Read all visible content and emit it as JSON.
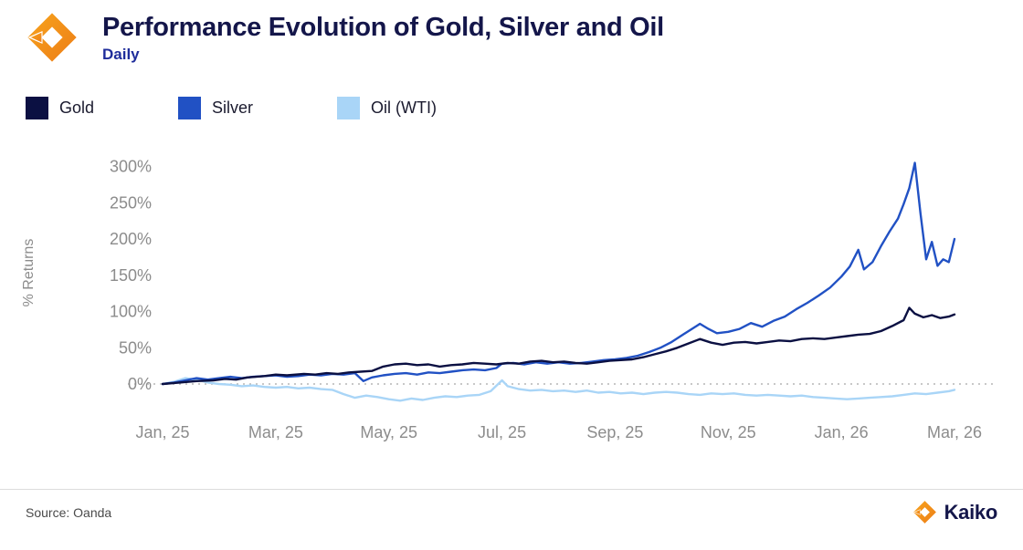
{
  "header": {
    "title": "Performance Evolution of Gold, Silver and Oil",
    "subtitle": "Daily"
  },
  "footer": {
    "source": "Source: Oanda",
    "brand": "Kaiko"
  },
  "colors": {
    "title_navy": "#14164a",
    "subtitle_blue": "#1f2d9b",
    "brand_orange": "#f0891e",
    "axis_text": "#8c8c8c",
    "zero_line": "#b5b5b5"
  },
  "chart_data": {
    "type": "line",
    "title": "Performance Evolution of Gold, Silver and Oil",
    "subtitle": "Daily",
    "xlabel": "",
    "ylabel": "% Returns",
    "x_unit": "months since Jan 2025",
    "ylim": [
      -40,
      320
    ],
    "yticks": [
      0,
      50,
      100,
      150,
      200,
      250,
      300
    ],
    "ytick_suffix": "%",
    "grid": "dashed zero line only",
    "legend_position": "top-left",
    "xticks": [
      {
        "x": 0,
        "label": "Jan, 25"
      },
      {
        "x": 2,
        "label": "Mar, 25"
      },
      {
        "x": 4,
        "label": "May, 25"
      },
      {
        "x": 6,
        "label": "Jul, 25"
      },
      {
        "x": 8,
        "label": "Sep, 25"
      },
      {
        "x": 10,
        "label": "Nov, 25"
      },
      {
        "x": 12,
        "label": "Jan, 26"
      },
      {
        "x": 14,
        "label": "Mar, 26"
      }
    ],
    "series": [
      {
        "name": "Gold",
        "color": "#0b1042",
        "points": [
          [
            0,
            0
          ],
          [
            0.3,
            2
          ],
          [
            0.6,
            4
          ],
          [
            0.9,
            5
          ],
          [
            1.1,
            7
          ],
          [
            1.3,
            6
          ],
          [
            1.5,
            9
          ],
          [
            1.8,
            11
          ],
          [
            2.0,
            13
          ],
          [
            2.2,
            12
          ],
          [
            2.5,
            14
          ],
          [
            2.7,
            13
          ],
          [
            2.9,
            15
          ],
          [
            3.1,
            14
          ],
          [
            3.3,
            16
          ],
          [
            3.5,
            17
          ],
          [
            3.7,
            18
          ],
          [
            3.9,
            24
          ],
          [
            4.1,
            27
          ],
          [
            4.3,
            28
          ],
          [
            4.5,
            26
          ],
          [
            4.7,
            27
          ],
          [
            4.9,
            24
          ],
          [
            5.1,
            26
          ],
          [
            5.3,
            27
          ],
          [
            5.5,
            29
          ],
          [
            5.7,
            28
          ],
          [
            5.9,
            27
          ],
          [
            6.1,
            29
          ],
          [
            6.3,
            28
          ],
          [
            6.5,
            31
          ],
          [
            6.7,
            32
          ],
          [
            6.9,
            30
          ],
          [
            7.1,
            31
          ],
          [
            7.3,
            29
          ],
          [
            7.5,
            28
          ],
          [
            7.7,
            30
          ],
          [
            7.9,
            32
          ],
          [
            8.1,
            33
          ],
          [
            8.3,
            34
          ],
          [
            8.5,
            37
          ],
          [
            8.7,
            41
          ],
          [
            8.9,
            45
          ],
          [
            9.1,
            50
          ],
          [
            9.3,
            56
          ],
          [
            9.5,
            62
          ],
          [
            9.7,
            57
          ],
          [
            9.9,
            54
          ],
          [
            10.1,
            57
          ],
          [
            10.3,
            58
          ],
          [
            10.5,
            56
          ],
          [
            10.7,
            58
          ],
          [
            10.9,
            60
          ],
          [
            11.1,
            59
          ],
          [
            11.3,
            62
          ],
          [
            11.5,
            63
          ],
          [
            11.7,
            62
          ],
          [
            11.9,
            64
          ],
          [
            12.1,
            66
          ],
          [
            12.3,
            68
          ],
          [
            12.5,
            69
          ],
          [
            12.7,
            73
          ],
          [
            12.9,
            80
          ],
          [
            13.1,
            88
          ],
          [
            13.2,
            105
          ],
          [
            13.3,
            97
          ],
          [
            13.45,
            92
          ],
          [
            13.6,
            95
          ],
          [
            13.75,
            91
          ],
          [
            13.9,
            93
          ],
          [
            14.0,
            96
          ]
        ]
      },
      {
        "name": "Silver",
        "color": "#2151c4",
        "points": [
          [
            0,
            0
          ],
          [
            0.2,
            2
          ],
          [
            0.4,
            5
          ],
          [
            0.6,
            8
          ],
          [
            0.8,
            6
          ],
          [
            1.0,
            8
          ],
          [
            1.2,
            10
          ],
          [
            1.4,
            8
          ],
          [
            1.6,
            10
          ],
          [
            1.8,
            11
          ],
          [
            2.0,
            12
          ],
          [
            2.2,
            10
          ],
          [
            2.4,
            11
          ],
          [
            2.6,
            13
          ],
          [
            2.8,
            12
          ],
          [
            3.0,
            14
          ],
          [
            3.2,
            13
          ],
          [
            3.4,
            15
          ],
          [
            3.55,
            4
          ],
          [
            3.7,
            9
          ],
          [
            3.9,
            12
          ],
          [
            4.1,
            14
          ],
          [
            4.3,
            15
          ],
          [
            4.5,
            13
          ],
          [
            4.7,
            16
          ],
          [
            4.9,
            15
          ],
          [
            5.1,
            17
          ],
          [
            5.3,
            19
          ],
          [
            5.5,
            20
          ],
          [
            5.7,
            19
          ],
          [
            5.9,
            22
          ],
          [
            6.0,
            28
          ],
          [
            6.2,
            29
          ],
          [
            6.4,
            27
          ],
          [
            6.6,
            30
          ],
          [
            6.8,
            28
          ],
          [
            7.0,
            30
          ],
          [
            7.2,
            28
          ],
          [
            7.4,
            29
          ],
          [
            7.6,
            31
          ],
          [
            7.8,
            33
          ],
          [
            8.0,
            34
          ],
          [
            8.2,
            36
          ],
          [
            8.4,
            39
          ],
          [
            8.6,
            44
          ],
          [
            8.8,
            50
          ],
          [
            9.0,
            58
          ],
          [
            9.2,
            68
          ],
          [
            9.4,
            78
          ],
          [
            9.5,
            83
          ],
          [
            9.65,
            76
          ],
          [
            9.8,
            70
          ],
          [
            10.0,
            72
          ],
          [
            10.2,
            76
          ],
          [
            10.4,
            84
          ],
          [
            10.6,
            79
          ],
          [
            10.8,
            87
          ],
          [
            11.0,
            93
          ],
          [
            11.2,
            103
          ],
          [
            11.4,
            112
          ],
          [
            11.6,
            122
          ],
          [
            11.8,
            133
          ],
          [
            12.0,
            148
          ],
          [
            12.15,
            162
          ],
          [
            12.3,
            185
          ],
          [
            12.4,
            158
          ],
          [
            12.55,
            168
          ],
          [
            12.7,
            190
          ],
          [
            12.85,
            210
          ],
          [
            13.0,
            228
          ],
          [
            13.1,
            248
          ],
          [
            13.2,
            270
          ],
          [
            13.3,
            305
          ],
          [
            13.4,
            235
          ],
          [
            13.5,
            172
          ],
          [
            13.6,
            196
          ],
          [
            13.7,
            163
          ],
          [
            13.8,
            172
          ],
          [
            13.9,
            168
          ],
          [
            14.0,
            200
          ]
        ]
      },
      {
        "name": "Oil (WTI)",
        "color": "#a9d5f7",
        "points": [
          [
            0,
            0
          ],
          [
            0.2,
            3
          ],
          [
            0.4,
            8
          ],
          [
            0.6,
            6
          ],
          [
            0.8,
            2
          ],
          [
            1.0,
            0
          ],
          [
            1.2,
            -1
          ],
          [
            1.4,
            -3
          ],
          [
            1.6,
            -2
          ],
          [
            1.8,
            -4
          ],
          [
            2.0,
            -5
          ],
          [
            2.2,
            -4
          ],
          [
            2.4,
            -6
          ],
          [
            2.6,
            -5
          ],
          [
            2.8,
            -7
          ],
          [
            3.0,
            -8
          ],
          [
            3.2,
            -14
          ],
          [
            3.4,
            -19
          ],
          [
            3.6,
            -16
          ],
          [
            3.8,
            -18
          ],
          [
            4.0,
            -21
          ],
          [
            4.2,
            -23
          ],
          [
            4.4,
            -20
          ],
          [
            4.6,
            -22
          ],
          [
            4.8,
            -19
          ],
          [
            5.0,
            -17
          ],
          [
            5.2,
            -18
          ],
          [
            5.4,
            -16
          ],
          [
            5.6,
            -15
          ],
          [
            5.8,
            -10
          ],
          [
            6.0,
            5
          ],
          [
            6.1,
            -3
          ],
          [
            6.3,
            -7
          ],
          [
            6.5,
            -9
          ],
          [
            6.7,
            -8
          ],
          [
            6.9,
            -10
          ],
          [
            7.1,
            -9
          ],
          [
            7.3,
            -11
          ],
          [
            7.5,
            -9
          ],
          [
            7.7,
            -12
          ],
          [
            7.9,
            -11
          ],
          [
            8.1,
            -13
          ],
          [
            8.3,
            -12
          ],
          [
            8.5,
            -14
          ],
          [
            8.7,
            -12
          ],
          [
            8.9,
            -11
          ],
          [
            9.1,
            -12
          ],
          [
            9.3,
            -14
          ],
          [
            9.5,
            -15
          ],
          [
            9.7,
            -13
          ],
          [
            9.9,
            -14
          ],
          [
            10.1,
            -13
          ],
          [
            10.3,
            -15
          ],
          [
            10.5,
            -16
          ],
          [
            10.7,
            -15
          ],
          [
            10.9,
            -16
          ],
          [
            11.1,
            -17
          ],
          [
            11.3,
            -16
          ],
          [
            11.5,
            -18
          ],
          [
            11.7,
            -19
          ],
          [
            11.9,
            -20
          ],
          [
            12.1,
            -21
          ],
          [
            12.3,
            -20
          ],
          [
            12.5,
            -19
          ],
          [
            12.7,
            -18
          ],
          [
            12.9,
            -17
          ],
          [
            13.1,
            -15
          ],
          [
            13.3,
            -13
          ],
          [
            13.5,
            -14
          ],
          [
            13.7,
            -12
          ],
          [
            13.9,
            -10
          ],
          [
            14.0,
            -8
          ]
        ]
      }
    ]
  }
}
